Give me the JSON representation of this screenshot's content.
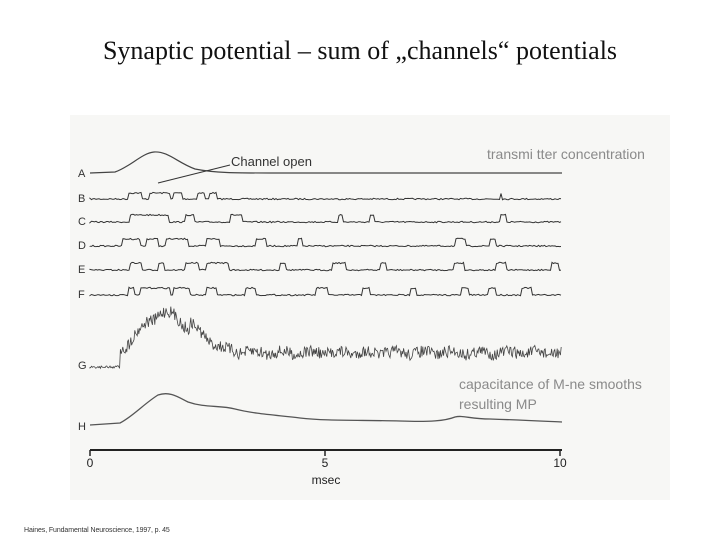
{
  "title": "Synaptic potential – sum of „channels“ potentials",
  "figure": {
    "trace_labels": [
      "A",
      "B",
      "C",
      "D",
      "E",
      "F",
      "G",
      "H"
    ],
    "channel_open_label": "Channel open",
    "transmitter_note": "transmi tter concentration",
    "capacitance_note_line1": "capacitance of M-ne smooths",
    "capacitance_note_line2": "resulting MP",
    "axis_ticks": [
      "0",
      "5",
      "10"
    ],
    "axis_label": "msec"
  },
  "citation": "Haines, Fundamental Neuroscience, 1997, p. 45"
}
